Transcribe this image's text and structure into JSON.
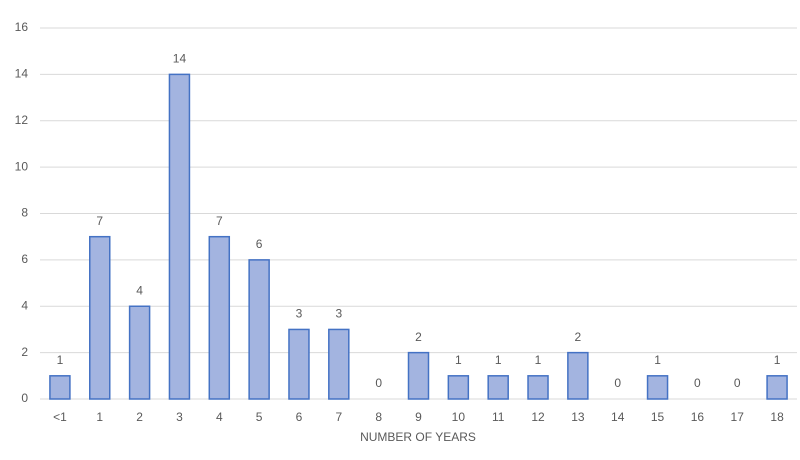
{
  "chart_data": {
    "type": "bar",
    "x_label": "NUMBER OF YEARS",
    "categories": [
      "<1",
      "1",
      "2",
      "3",
      "4",
      "5",
      "6",
      "7",
      "8",
      "9",
      "10",
      "11",
      "12",
      "13",
      "14",
      "15",
      "16",
      "17",
      "18"
    ],
    "values": [
      1,
      7,
      4,
      14,
      7,
      6,
      3,
      3,
      0,
      2,
      1,
      1,
      1,
      2,
      0,
      1,
      0,
      0,
      1
    ],
    "color": "#a3b4e0",
    "edge_color": "#4472c4",
    "ylim": [
      0,
      16
    ],
    "yticks": [
      0,
      2,
      4,
      6,
      8,
      10,
      12,
      14,
      16
    ],
    "grid": true,
    "data_labels": true
  }
}
